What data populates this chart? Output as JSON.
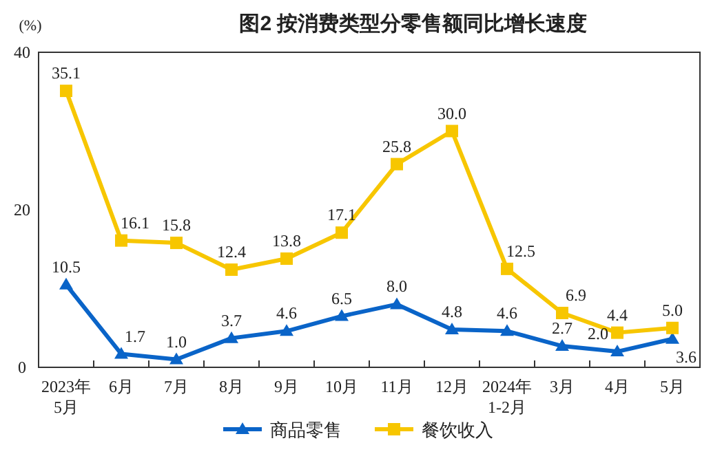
{
  "chart_data": {
    "type": "line",
    "title": "图2 按消费类型分零售额同比增长速度",
    "ylabel": "(%)",
    "categories": [
      "2023年\n5月",
      "6月",
      "7月",
      "8月",
      "9月",
      "10月",
      "11月",
      "12月",
      "2024年\n1-2月",
      "3月",
      "4月",
      "5月"
    ],
    "series": [
      {
        "name": "商品零售",
        "color": "#0a64c8",
        "marker": "triangle",
        "values": [
          10.5,
          1.7,
          1.0,
          3.7,
          4.6,
          6.5,
          8.0,
          4.8,
          4.6,
          2.7,
          2.0,
          3.6
        ],
        "value_labels": [
          "10.5",
          "1.7",
          "1.0",
          "3.7",
          "4.6",
          "6.5",
          "8.0",
          "4.8",
          "4.6",
          "2.7",
          "2.0",
          "3.6"
        ]
      },
      {
        "name": "餐饮收入",
        "color": "#f7c600",
        "marker": "square",
        "values": [
          35.1,
          16.1,
          15.8,
          12.4,
          13.8,
          17.1,
          25.8,
          30.0,
          12.5,
          6.9,
          4.4,
          5.0
        ],
        "value_labels": [
          "35.1",
          "16.1",
          "15.8",
          "12.4",
          "13.8",
          "17.1",
          "25.8",
          "30.0",
          "12.5",
          "6.9",
          "4.4",
          "5.0"
        ]
      }
    ],
    "ylim": [
      0,
      40
    ],
    "yticks": [
      0,
      20,
      40
    ],
    "legend": "bottom"
  }
}
